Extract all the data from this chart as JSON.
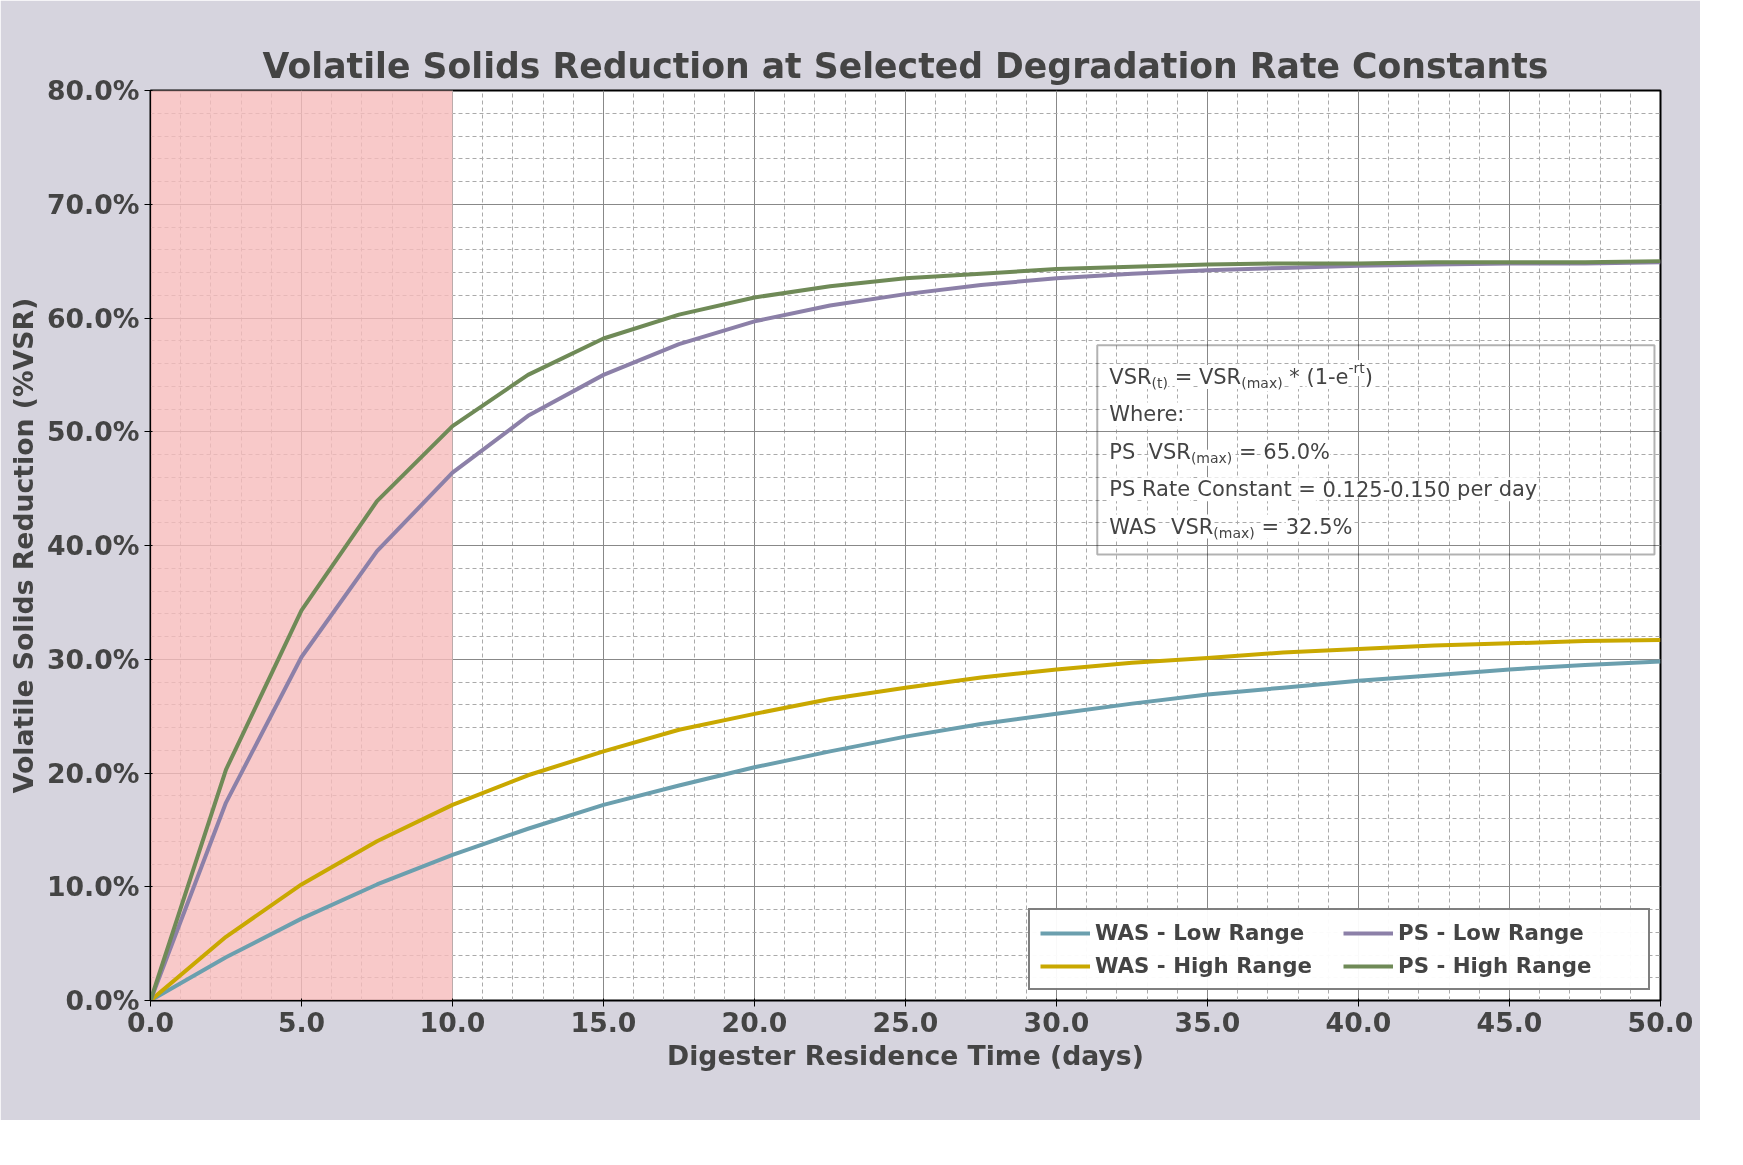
{
  "chart_data": {
    "type": "line",
    "title": "Volatile Solids Reduction at Selected Degradation Rate Constants",
    "xlabel": "Digester Residence Time (days)",
    "ylabel": "Volatile Solids Reduction (%VSR)",
    "x": [
      0,
      2.5,
      5,
      7.5,
      10,
      12.5,
      15,
      17.5,
      20,
      22.5,
      25,
      27.5,
      30,
      32.5,
      35,
      37.5,
      40,
      42.5,
      45,
      47.5,
      50
    ],
    "series": [
      {
        "name": "WAS - Low Range",
        "color": "#6b9fae",
        "values": [
          0,
          3.8,
          7.2,
          10.2,
          12.8,
          15.1,
          17.2,
          18.9,
          20.5,
          21.9,
          23.2,
          24.3,
          25.2,
          26.1,
          26.9,
          27.5,
          28.1,
          28.6,
          29.1,
          29.5,
          29.8
        ]
      },
      {
        "name": "WAS - High Range",
        "color": "#c9a800",
        "values": [
          0,
          5.6,
          10.2,
          14.0,
          17.2,
          19.8,
          21.9,
          23.8,
          25.2,
          26.5,
          27.5,
          28.4,
          29.1,
          29.7,
          30.1,
          30.6,
          30.9,
          31.2,
          31.4,
          31.6,
          31.7
        ]
      },
      {
        "name": "PS - Low Range",
        "color": "#8c80a8",
        "values": [
          0,
          17.4,
          30.2,
          39.5,
          46.4,
          51.4,
          55.0,
          57.7,
          59.7,
          61.1,
          62.1,
          62.9,
          63.5,
          63.9,
          64.2,
          64.4,
          64.6,
          64.7,
          64.8,
          64.8,
          64.9
        ]
      },
      {
        "name": "PS - High Range",
        "color": "#6f8a57",
        "values": [
          0,
          20.3,
          34.3,
          43.9,
          50.5,
          55.0,
          58.2,
          60.3,
          61.8,
          62.8,
          63.5,
          63.9,
          64.3,
          64.5,
          64.7,
          64.8,
          64.8,
          64.9,
          64.9,
          64.9,
          65.0
        ]
      }
    ],
    "xlim": [
      0,
      50
    ],
    "xticks": [
      {
        "value": 0,
        "label": "0.0"
      },
      {
        "value": 5,
        "label": "5.0"
      },
      {
        "value": 10,
        "label": "10.0"
      },
      {
        "value": 15,
        "label": "15.0"
      },
      {
        "value": 20,
        "label": "20.0"
      },
      {
        "value": 25,
        "label": "25.0"
      },
      {
        "value": 30,
        "label": "30.0"
      },
      {
        "value": 35,
        "label": "35.0"
      },
      {
        "value": 40,
        "label": "40.0"
      },
      {
        "value": 45,
        "label": "45.0"
      },
      {
        "value": 50,
        "label": "50.0"
      }
    ],
    "ylim": [
      0,
      80
    ],
    "yticks": [
      {
        "value": 0,
        "label": "0.0%"
      },
      {
        "value": 10,
        "label": "10.0%"
      },
      {
        "value": 20,
        "label": "20.0%"
      },
      {
        "value": 30,
        "label": "30.0%"
      },
      {
        "value": 40,
        "label": "40.0%"
      },
      {
        "value": 50,
        "label": "50.0%"
      },
      {
        "value": 60,
        "label": "60.0%"
      },
      {
        "value": 70,
        "label": "70.0%"
      },
      {
        "value": 80,
        "label": "80.0%"
      }
    ],
    "bands": [
      {
        "axis": "x",
        "from": 0,
        "to": 10,
        "color": "#f6bcbc"
      }
    ],
    "annotations": [
      "VSR$_{(t)}$ = VSR$_{(max)}$ * (1-e$^{-rt}$)",
      "Where:",
      "PS  VSR$_{(max)}$ = 65.0%",
      "PS Rate Constant = 0.125-0.150 per day",
      "WAS  VSR$_{(max)}$ = 32.5%"
    ],
    "grid": true,
    "legend": "bottom right",
    "marker": "none",
    "line_style": "solid"
  }
}
